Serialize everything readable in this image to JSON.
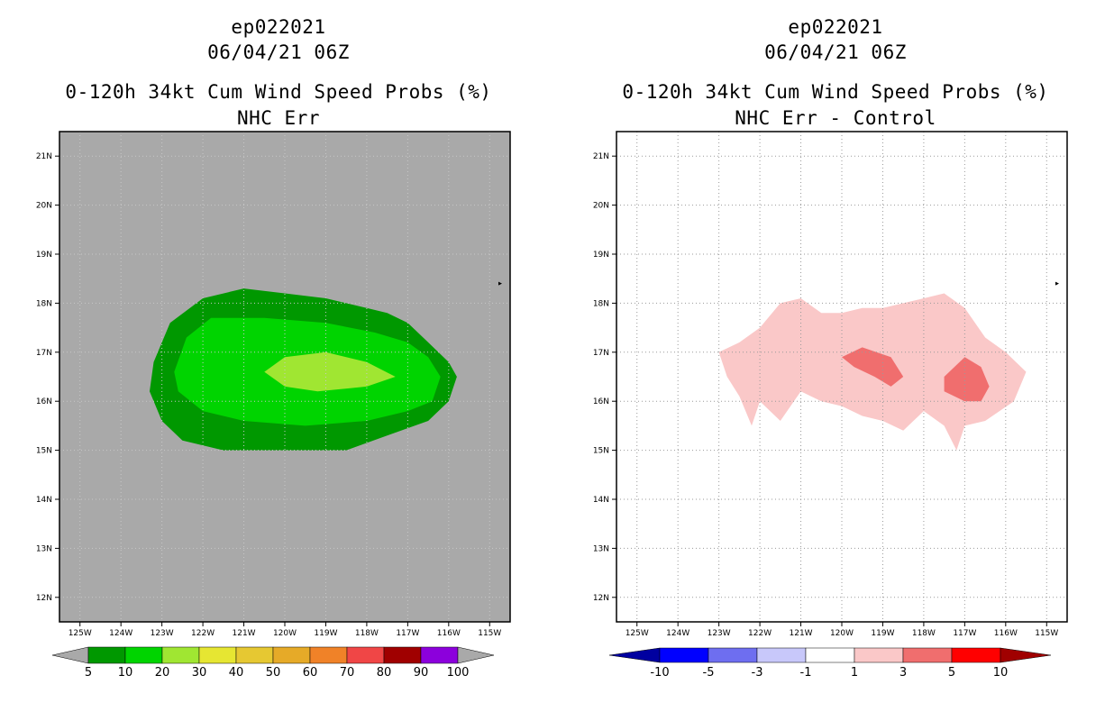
{
  "colors": {
    "abs_background": "#a9a9a9",
    "abs_levels": [
      "#009800",
      "#00d400",
      "#a0e632",
      "#e6e632",
      "#e6c832",
      "#e6aa28",
      "#f08228",
      "#f04646",
      "#a00000",
      "#8c00dc"
    ],
    "abs_under": "#a9a9a9",
    "abs_over": "#a9a9a9",
    "diff_levels": [
      "#0000a0",
      "#0000ff",
      "#6e6ef0",
      "#c8c8fa",
      "#ffffff",
      "#fac8c8",
      "#f06e6e",
      "#ff0000",
      "#a00000"
    ]
  },
  "chart_data": [
    {
      "type": "contour-map",
      "title_lines": [
        "ep022021",
        "06/04/21 06Z",
        "0-120h 34kt Cum Wind Speed Probs (%)",
        "NHC Err"
      ],
      "xlim": [
        -125.5,
        -114.5
      ],
      "ylim": [
        11.5,
        21.5
      ],
      "x_ticks": [
        -125,
        -124,
        -123,
        -122,
        -121,
        -120,
        -119,
        -118,
        -117,
        -116,
        -115
      ],
      "x_tick_labels": [
        "125W",
        "124W",
        "123W",
        "122W",
        "121W",
        "120W",
        "119W",
        "118W",
        "117W",
        "116W",
        "115W"
      ],
      "y_ticks": [
        21,
        20,
        19,
        18,
        17,
        16,
        15,
        14,
        13,
        12
      ],
      "y_tick_labels": [
        "21N",
        "20N",
        "19N",
        "18N",
        "17N",
        "16N",
        "15N",
        "14N",
        "13N",
        "12N"
      ],
      "colorbar_labels": [
        "5",
        "10",
        "20",
        "30",
        "40",
        "50",
        "60",
        "70",
        "80",
        "90",
        "100"
      ],
      "contours": [
        {
          "level": 5,
          "color_index": 0,
          "lonlat": [
            [
              -123.2,
              16.8
            ],
            [
              -122.8,
              17.6
            ],
            [
              -122.0,
              18.1
            ],
            [
              -121.0,
              18.3
            ],
            [
              -120.0,
              18.2
            ],
            [
              -119.0,
              18.1
            ],
            [
              -118.0,
              17.9
            ],
            [
              -117.5,
              17.8
            ],
            [
              -117.0,
              17.6
            ],
            [
              -116.5,
              17.2
            ],
            [
              -116.0,
              16.8
            ],
            [
              -115.8,
              16.5
            ],
            [
              -116.0,
              16.0
            ],
            [
              -116.5,
              15.6
            ],
            [
              -117.5,
              15.3
            ],
            [
              -118.5,
              15.0
            ],
            [
              -119.5,
              15.0
            ],
            [
              -120.5,
              15.0
            ],
            [
              -121.5,
              15.0
            ],
            [
              -122.5,
              15.2
            ],
            [
              -123.0,
              15.6
            ],
            [
              -123.3,
              16.2
            ]
          ]
        },
        {
          "level": 10,
          "color_index": 1,
          "lonlat": [
            [
              -122.7,
              16.6
            ],
            [
              -122.4,
              17.3
            ],
            [
              -121.8,
              17.7
            ],
            [
              -120.5,
              17.7
            ],
            [
              -119.0,
              17.6
            ],
            [
              -117.8,
              17.4
            ],
            [
              -117.0,
              17.2
            ],
            [
              -116.5,
              16.9
            ],
            [
              -116.2,
              16.5
            ],
            [
              -116.4,
              16.0
            ],
            [
              -117.0,
              15.8
            ],
            [
              -118.0,
              15.6
            ],
            [
              -119.5,
              15.5
            ],
            [
              -121.0,
              15.6
            ],
            [
              -122.0,
              15.8
            ],
            [
              -122.6,
              16.2
            ]
          ]
        },
        {
          "level": 20,
          "color_index": 2,
          "lonlat": [
            [
              -120.5,
              16.6
            ],
            [
              -120.0,
              16.9
            ],
            [
              -119.0,
              17.0
            ],
            [
              -118.0,
              16.8
            ],
            [
              -117.3,
              16.5
            ],
            [
              -118.0,
              16.3
            ],
            [
              -119.2,
              16.2
            ],
            [
              -120.0,
              16.3
            ]
          ]
        }
      ]
    },
    {
      "type": "contour-map",
      "title_lines": [
        "ep022021",
        "06/04/21 06Z",
        "0-120h 34kt Cum Wind Speed Probs (%)",
        "NHC Err - Control"
      ],
      "xlim": [
        -125.5,
        -114.5
      ],
      "ylim": [
        11.5,
        21.5
      ],
      "x_ticks": [
        -125,
        -124,
        -123,
        -122,
        -121,
        -120,
        -119,
        -118,
        -117,
        -116,
        -115
      ],
      "x_tick_labels": [
        "125W",
        "124W",
        "123W",
        "122W",
        "121W",
        "120W",
        "119W",
        "118W",
        "117W",
        "116W",
        "115W"
      ],
      "y_ticks": [
        21,
        20,
        19,
        18,
        17,
        16,
        15,
        14,
        13,
        12
      ],
      "y_tick_labels": [
        "21N",
        "20N",
        "19N",
        "18N",
        "17N",
        "16N",
        "15N",
        "14N",
        "13N",
        "12N"
      ],
      "grid": true,
      "colorbar_labels": [
        "-10",
        "-5",
        "-3",
        "-1",
        "1",
        "3",
        "5",
        "10"
      ],
      "contours": [
        {
          "level": 1,
          "color_index": 5,
          "lonlat": [
            [
              -123.0,
              17.0
            ],
            [
              -122.5,
              17.2
            ],
            [
              -122.0,
              17.5
            ],
            [
              -121.5,
              18.0
            ],
            [
              -121.0,
              18.1
            ],
            [
              -120.5,
              17.8
            ],
            [
              -120.0,
              17.8
            ],
            [
              -119.5,
              17.9
            ],
            [
              -119.0,
              17.9
            ],
            [
              -118.5,
              18.0
            ],
            [
              -118.0,
              18.1
            ],
            [
              -117.5,
              18.2
            ],
            [
              -117.0,
              17.9
            ],
            [
              -116.5,
              17.3
            ],
            [
              -116.0,
              17.0
            ],
            [
              -115.5,
              16.6
            ],
            [
              -115.8,
              16.0
            ],
            [
              -116.5,
              15.6
            ],
            [
              -117.0,
              15.5
            ],
            [
              -117.2,
              15.0
            ],
            [
              -117.5,
              15.5
            ],
            [
              -118.0,
              15.8
            ],
            [
              -118.5,
              15.4
            ],
            [
              -119.0,
              15.6
            ],
            [
              -119.5,
              15.7
            ],
            [
              -120.0,
              15.9
            ],
            [
              -120.5,
              16.0
            ],
            [
              -121.0,
              16.2
            ],
            [
              -121.5,
              15.6
            ],
            [
              -122.0,
              16.0
            ],
            [
              -122.2,
              15.5
            ],
            [
              -122.5,
              16.1
            ],
            [
              -122.8,
              16.5
            ]
          ]
        },
        {
          "level": 3,
          "color_index": 6,
          "lonlat": [
            [
              -120.0,
              16.9
            ],
            [
              -119.5,
              17.1
            ],
            [
              -118.8,
              16.9
            ],
            [
              -118.5,
              16.5
            ],
            [
              -118.8,
              16.3
            ],
            [
              -119.2,
              16.5
            ],
            [
              -119.7,
              16.7
            ]
          ]
        },
        {
          "level": 3,
          "color_index": 6,
          "lonlat": [
            [
              -117.5,
              16.5
            ],
            [
              -117.0,
              16.9
            ],
            [
              -116.6,
              16.7
            ],
            [
              -116.4,
              16.3
            ],
            [
              -116.6,
              16.0
            ],
            [
              -117.0,
              16.0
            ],
            [
              -117.5,
              16.2
            ]
          ]
        }
      ]
    }
  ]
}
